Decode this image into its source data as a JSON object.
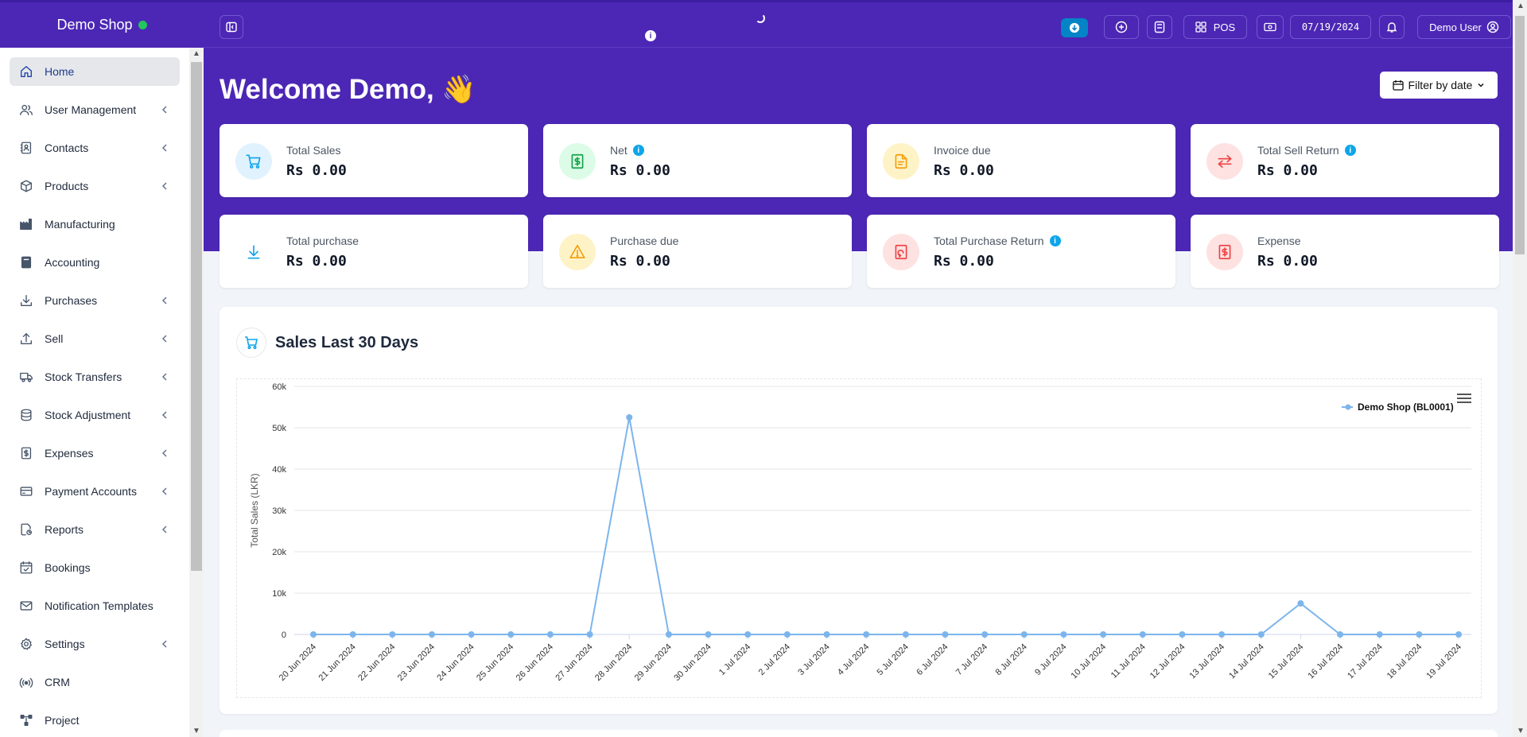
{
  "brand": {
    "name": "Demo Shop",
    "status_color": "#22c55e"
  },
  "sidebar": {
    "items": [
      {
        "label": "Home",
        "icon": "home-icon",
        "active": true,
        "chevron": false
      },
      {
        "label": "User Management",
        "icon": "users-icon",
        "chevron": true
      },
      {
        "label": "Contacts",
        "icon": "contact-book-icon",
        "chevron": true
      },
      {
        "label": "Products",
        "icon": "cube-icon",
        "chevron": true
      },
      {
        "label": "Manufacturing",
        "icon": "factory-icon",
        "chevron": false
      },
      {
        "label": "Accounting",
        "icon": "book-icon",
        "chevron": false
      },
      {
        "label": "Purchases",
        "icon": "download-arrow-icon",
        "chevron": true
      },
      {
        "label": "Sell",
        "icon": "upload-arrow-icon",
        "chevron": true
      },
      {
        "label": "Stock Transfers",
        "icon": "truck-icon",
        "chevron": true
      },
      {
        "label": "Stock Adjustment",
        "icon": "database-icon",
        "chevron": true
      },
      {
        "label": "Expenses",
        "icon": "receipt-icon",
        "chevron": true
      },
      {
        "label": "Payment Accounts",
        "icon": "credit-card-icon",
        "chevron": true
      },
      {
        "label": "Reports",
        "icon": "report-icon",
        "chevron": true
      },
      {
        "label": "Bookings",
        "icon": "calendar-check-icon",
        "chevron": false
      },
      {
        "label": "Notification Templates",
        "icon": "envelope-icon",
        "chevron": false
      },
      {
        "label": "Settings",
        "icon": "gear-icon",
        "chevron": true
      },
      {
        "label": "CRM",
        "icon": "broadcast-icon",
        "chevron": false
      },
      {
        "label": "Project",
        "icon": "project-icon",
        "chevron": false
      }
    ]
  },
  "topbar": {
    "pos_label": "POS",
    "date": "07/19/2024",
    "user": "Demo User"
  },
  "welcome": {
    "text": "Welcome Demo, 👋"
  },
  "filter": {
    "label": "Filter by date"
  },
  "cards": [
    {
      "label": "Total Sales",
      "value": "Rs 0.00",
      "color": "#0ea5e9",
      "bg": "#e0f2fe",
      "info": false,
      "icon": "cart-icon"
    },
    {
      "label": "Net",
      "value": "Rs 0.00",
      "color": "#16a34a",
      "bg": "#dcfce7",
      "info": true,
      "icon": "money-receipt-icon"
    },
    {
      "label": "Invoice due",
      "value": "Rs 0.00",
      "color": "#f59e0b",
      "bg": "#fef3c7",
      "info": false,
      "icon": "document-icon"
    },
    {
      "label": "Total Sell Return",
      "value": "Rs 0.00",
      "color": "#ef4444",
      "bg": "#fee2e2",
      "info": true,
      "icon": "exchange-icon"
    },
    {
      "label": "Total purchase",
      "value": "Rs 0.00",
      "color": "#0ea5e9",
      "bg": "#ffffff",
      "info": false,
      "icon": "download-icon"
    },
    {
      "label": "Purchase due",
      "value": "Rs 0.00",
      "color": "#f59e0b",
      "bg": "#fef3c7",
      "info": false,
      "icon": "warning-icon"
    },
    {
      "label": "Total Purchase Return",
      "value": "Rs 0.00",
      "color": "#ef4444",
      "bg": "#fee2e2",
      "info": true,
      "icon": "receipt-return-icon"
    },
    {
      "label": "Expense",
      "value": "Rs 0.00",
      "color": "#ef4444",
      "bg": "#fee2e2",
      "info": false,
      "icon": "money-receipt-icon"
    }
  ],
  "panel": {
    "title": "Sales Last 30 Days"
  },
  "chart_data": {
    "type": "line",
    "title": "",
    "xlabel": "",
    "ylabel": "Total Sales (LKR)",
    "ylim": [
      0,
      60000
    ],
    "yticks": [
      0,
      10000,
      20000,
      30000,
      40000,
      50000,
      60000
    ],
    "ytick_labels": [
      "0",
      "10k",
      "20k",
      "30k",
      "40k",
      "50k",
      "60k"
    ],
    "grid": true,
    "legend": "top-right",
    "categories": [
      "20 Jun 2024",
      "21 Jun 2024",
      "22 Jun 2024",
      "23 Jun 2024",
      "24 Jun 2024",
      "25 Jun 2024",
      "26 Jun 2024",
      "27 Jun 2024",
      "28 Jun 2024",
      "29 Jun 2024",
      "30 Jun 2024",
      "1 Jul 2024",
      "2 Jul 2024",
      "3 Jul 2024",
      "4 Jul 2024",
      "5 Jul 2024",
      "6 Jul 2024",
      "7 Jul 2024",
      "8 Jul 2024",
      "9 Jul 2024",
      "10 Jul 2024",
      "11 Jul 2024",
      "12 Jul 2024",
      "13 Jul 2024",
      "14 Jul 2024",
      "15 Jul 2024",
      "16 Jul 2024",
      "17 Jul 2024",
      "18 Jul 2024",
      "19 Jul 2024"
    ],
    "series": [
      {
        "name": "Demo Shop (BL0001)",
        "color": "#7cb5ec",
        "values": [
          0,
          0,
          0,
          0,
          0,
          0,
          0,
          0,
          52500,
          0,
          0,
          0,
          0,
          0,
          0,
          0,
          0,
          0,
          0,
          0,
          0,
          0,
          0,
          0,
          0,
          7500,
          0,
          0,
          0,
          0
        ]
      }
    ]
  }
}
